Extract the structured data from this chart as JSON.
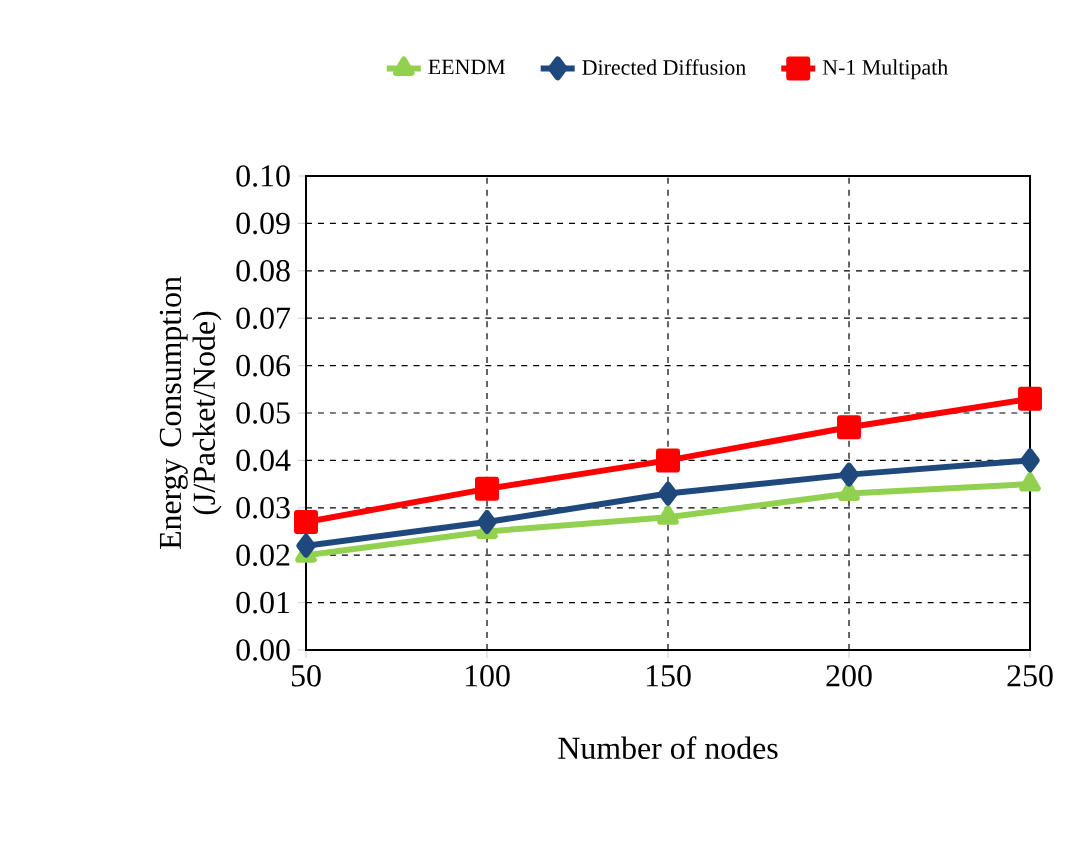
{
  "chart_data": {
    "type": "line",
    "xlabel": "Number of nodes",
    "ylabel": "Energy Consumption (J/Packet/Node)",
    "categories": [
      "50",
      "100",
      "150",
      "200",
      "250"
    ],
    "series": [
      {
        "name": "EENDM",
        "color": "#92d050",
        "marker": "triangle",
        "values": [
          0.02,
          0.025,
          0.028,
          0.033,
          0.035
        ]
      },
      {
        "name": "Directed Diffusion",
        "color": "#1f497d",
        "marker": "diamond",
        "values": [
          0.022,
          0.027,
          0.033,
          0.037,
          0.04
        ]
      },
      {
        "name": "N-1 Multipath",
        "color": "#ff0000",
        "marker": "square",
        "values": [
          0.027,
          0.034,
          0.04,
          0.047,
          0.053
        ]
      }
    ],
    "ylim": [
      0,
      0.1
    ],
    "yticks": [
      {
        "value": 0,
        "label": "0.00"
      },
      {
        "value": 0.01,
        "label": "0.01"
      },
      {
        "value": 0.02,
        "label": "0.02"
      },
      {
        "value": 0.03,
        "label": "0.03"
      },
      {
        "value": 0.04,
        "label": "0.04"
      },
      {
        "value": 0.05,
        "label": "0.05"
      },
      {
        "value": 0.06,
        "label": "0.06"
      },
      {
        "value": 0.07,
        "label": "0.07"
      },
      {
        "value": 0.08,
        "label": "0.08"
      },
      {
        "value": 0.09,
        "label": "0.09"
      },
      {
        "value": 0.1,
        "label": "0.10"
      }
    ],
    "grid": true,
    "legend": "top",
    "line_style": "solid"
  }
}
